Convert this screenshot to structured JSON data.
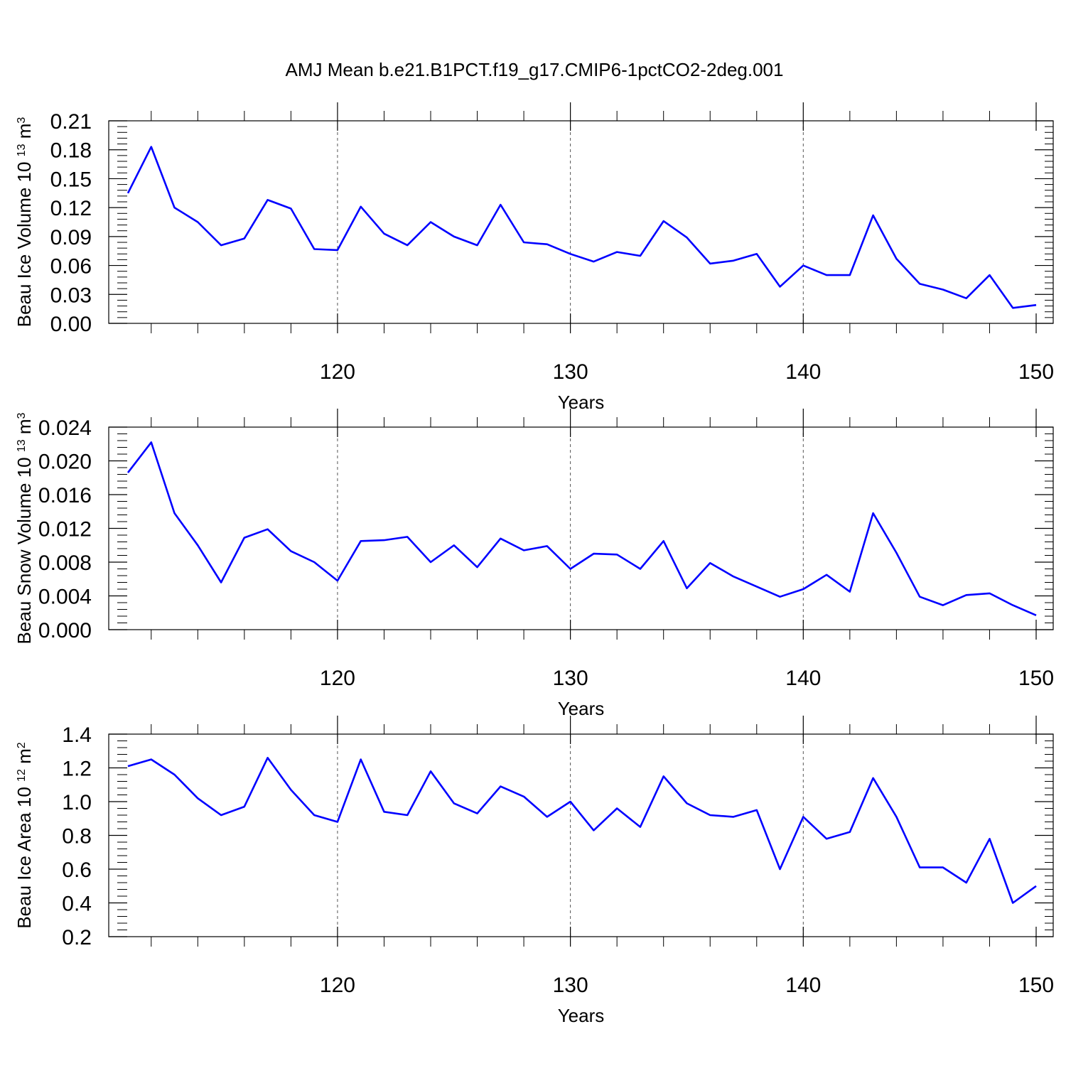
{
  "title": "AMJ Mean b.e21.B1PCT.f19_g17.CMIP6-1pctCO2-2deg.001",
  "line_color": "#0000ff",
  "chart_data": [
    {
      "type": "line",
      "ylabel": "Beau Ice Volume 10",
      "ylabel_exp": "13",
      "ylabel_unit": "m",
      "ylabel_unit_exp": "3",
      "xlabel": "Years",
      "xlim": [
        111,
        150
      ],
      "ylim": [
        0,
        0.21
      ],
      "yticks": [
        "0.00",
        "0.03",
        "0.06",
        "0.09",
        "0.12",
        "0.15",
        "0.18",
        "0.21"
      ],
      "xticks": [
        "120",
        "130",
        "140",
        "150"
      ],
      "grid": "dashed vertical at major x ticks",
      "series": [
        {
          "x": [
            111,
            112,
            113,
            114,
            115,
            116,
            117,
            118,
            119,
            120,
            121,
            122,
            123,
            124,
            125,
            126,
            127,
            128,
            129,
            130,
            131,
            132,
            133,
            134,
            135,
            136,
            137,
            138,
            139,
            140,
            141,
            142,
            143,
            144,
            145,
            146,
            147,
            148,
            149,
            150
          ],
          "values": [
            0.135,
            0.183,
            0.12,
            0.105,
            0.081,
            0.088,
            0.128,
            0.119,
            0.077,
            0.076,
            0.121,
            0.093,
            0.081,
            0.105,
            0.09,
            0.081,
            0.123,
            0.084,
            0.082,
            0.072,
            0.064,
            0.074,
            0.07,
            0.106,
            0.089,
            0.062,
            0.065,
            0.072,
            0.038,
            0.06,
            0.05,
            0.05,
            0.112,
            0.067,
            0.041,
            0.035,
            0.026,
            0.05,
            0.016,
            0.019
          ]
        }
      ]
    },
    {
      "type": "line",
      "ylabel": "Beau Snow Volume 10",
      "ylabel_exp": "13",
      "ylabel_unit": "m",
      "ylabel_unit_exp": "3",
      "xlabel": "Years",
      "xlim": [
        111,
        150
      ],
      "ylim": [
        0,
        0.024
      ],
      "yticks": [
        "0.000",
        "0.004",
        "0.008",
        "0.012",
        "0.016",
        "0.020",
        "0.024"
      ],
      "xticks": [
        "120",
        "130",
        "140",
        "150"
      ],
      "grid": "dashed vertical at major x ticks",
      "series": [
        {
          "x": [
            111,
            112,
            113,
            114,
            115,
            116,
            117,
            118,
            119,
            120,
            121,
            122,
            123,
            124,
            125,
            126,
            127,
            128,
            129,
            130,
            131,
            132,
            133,
            134,
            135,
            136,
            137,
            138,
            139,
            140,
            141,
            142,
            143,
            144,
            145,
            146,
            147,
            148,
            149,
            150
          ],
          "values": [
            0.0186,
            0.0222,
            0.0138,
            0.01,
            0.0056,
            0.0109,
            0.0119,
            0.0093,
            0.008,
            0.0058,
            0.0105,
            0.0106,
            0.011,
            0.008,
            0.01,
            0.0074,
            0.0108,
            0.0094,
            0.0099,
            0.0072,
            0.009,
            0.0089,
            0.0072,
            0.0105,
            0.0049,
            0.0079,
            0.0063,
            0.0051,
            0.0039,
            0.0048,
            0.0065,
            0.0045,
            0.0138,
            0.0091,
            0.0039,
            0.0029,
            0.0041,
            0.0043,
            0.0029,
            0.0017
          ]
        }
      ]
    },
    {
      "type": "line",
      "ylabel": "Beau Ice Area 10",
      "ylabel_exp": "12",
      "ylabel_unit": "m",
      "ylabel_unit_exp": "2",
      "xlabel": "Years",
      "xlim": [
        111,
        150
      ],
      "ylim": [
        0.2,
        1.4
      ],
      "yticks": [
        "0.2",
        "0.4",
        "0.6",
        "0.8",
        "1.0",
        "1.2",
        "1.4"
      ],
      "xticks": [
        "120",
        "130",
        "140",
        "150"
      ],
      "grid": "dashed vertical at major x ticks",
      "series": [
        {
          "x": [
            111,
            112,
            113,
            114,
            115,
            116,
            117,
            118,
            119,
            120,
            121,
            122,
            123,
            124,
            125,
            126,
            127,
            128,
            129,
            130,
            131,
            132,
            133,
            134,
            135,
            136,
            137,
            138,
            139,
            140,
            141,
            142,
            143,
            144,
            145,
            146,
            147,
            148,
            149,
            150
          ],
          "values": [
            1.21,
            1.25,
            1.16,
            1.02,
            0.92,
            0.97,
            1.26,
            1.07,
            0.92,
            0.88,
            1.25,
            0.94,
            0.92,
            1.18,
            0.99,
            0.93,
            1.09,
            1.03,
            0.91,
            1.0,
            0.83,
            0.96,
            0.85,
            1.15,
            0.99,
            0.92,
            0.91,
            0.95,
            0.6,
            0.91,
            0.78,
            0.82,
            1.14,
            0.91,
            0.61,
            0.61,
            0.52,
            0.78,
            0.4,
            0.5
          ]
        }
      ]
    }
  ]
}
